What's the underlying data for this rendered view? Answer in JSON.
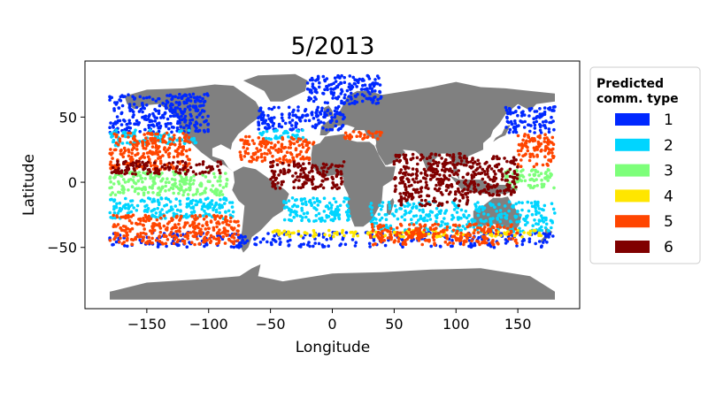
{
  "chart_data": {
    "type": "scatter",
    "title": "5/2013",
    "xlabel": "Longitude",
    "ylabel": "Latitude",
    "xlim": [
      -200,
      200
    ],
    "ylim": [
      -97,
      93
    ],
    "xticks": [
      -150,
      -100,
      -50,
      0,
      50,
      100,
      150
    ],
    "yticks": [
      -50,
      0,
      50
    ],
    "xtick_labels": [
      "−150",
      "−100",
      "−50",
      "0",
      "50",
      "100",
      "150"
    ],
    "ytick_labels": [
      "−50",
      "0",
      "50"
    ],
    "grid": false,
    "land_color": "#808080",
    "legend": {
      "title_line1": "Predicted",
      "title_line2": "comm. type",
      "placement": "outside-right",
      "entries": [
        {
          "label": "1",
          "color": "#0028ff"
        },
        {
          "label": "2",
          "color": "#00d5ff"
        },
        {
          "label": "3",
          "color": "#7dff7a"
        },
        {
          "label": "4",
          "color": "#ffe600"
        },
        {
          "label": "5",
          "color": "#ff4500"
        },
        {
          "label": "6",
          "color": "#800000"
        }
      ]
    },
    "series": [
      {
        "category": "1",
        "regions": [
          {
            "lon": [
              -180,
              -100
            ],
            "lat": [
              38,
              68
            ]
          },
          {
            "lon": [
              -60,
              10
            ],
            "lat": [
              40,
              58
            ]
          },
          {
            "lon": [
              -20,
              40
            ],
            "lat": [
              60,
              82
            ]
          },
          {
            "lon": [
              140,
              180
            ],
            "lat": [
              38,
              58
            ]
          },
          {
            "lon": [
              -180,
              180
            ],
            "lat": [
              -50,
              -38
            ]
          }
        ]
      },
      {
        "category": "2",
        "regions": [
          {
            "lon": [
              -180,
              -110
            ],
            "lat": [
              28,
              40
            ]
          },
          {
            "lon": [
              -180,
              -80
            ],
            "lat": [
              -28,
              -12
            ]
          },
          {
            "lon": [
              -40,
              15
            ],
            "lat": [
              -30,
              -12
            ]
          },
          {
            "lon": [
              30,
              180
            ],
            "lat": [
              -38,
              -15
            ]
          },
          {
            "lon": [
              -60,
              -20
            ],
            "lat": [
              32,
              40
            ]
          }
        ]
      },
      {
        "category": "3",
        "regions": [
          {
            "lon": [
              -180,
              -85
            ],
            "lat": [
              -10,
              8
            ]
          },
          {
            "lon": [
              140,
              180
            ],
            "lat": [
              -5,
              10
            ]
          }
        ]
      },
      {
        "category": "4",
        "regions": [
          {
            "lon": [
              -50,
              170
            ],
            "lat": [
              -42,
              -37
            ]
          }
        ]
      },
      {
        "category": "5",
        "regions": [
          {
            "lon": [
              -180,
              -115
            ],
            "lat": [
              10,
              38
            ]
          },
          {
            "lon": [
              -180,
              -75
            ],
            "lat": [
              -48,
              -25
            ]
          },
          {
            "lon": [
              -75,
              -15
            ],
            "lat": [
              15,
              35
            ]
          },
          {
            "lon": [
              30,
              150
            ],
            "lat": [
              -48,
              -32
            ]
          },
          {
            "lon": [
              150,
              180
            ],
            "lat": [
              12,
              38
            ]
          },
          {
            "lon": [
              10,
              40
            ],
            "lat": [
              33,
              39
            ]
          }
        ]
      },
      {
        "category": "6",
        "regions": [
          {
            "lon": [
              -180,
              -90
            ],
            "lat": [
              6,
              16
            ]
          },
          {
            "lon": [
              -50,
              10
            ],
            "lat": [
              -5,
              16
            ]
          },
          {
            "lon": [
              50,
              110
            ],
            "lat": [
              -18,
              22
            ]
          },
          {
            "lon": [
              110,
              150
            ],
            "lat": [
              -10,
              20
            ]
          }
        ]
      }
    ]
  }
}
